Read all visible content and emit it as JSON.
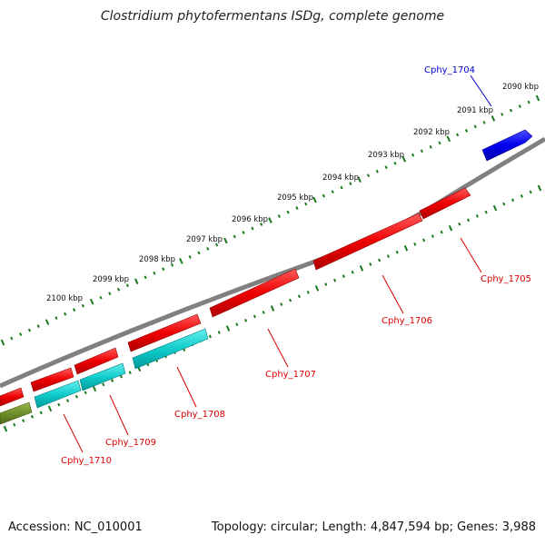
{
  "title": "Clostridium phytofermentans ISDg, complete genome",
  "footer": {
    "accession": "Accession: NC_010001",
    "summary": "Topology: circular; Length: 4,847,594 bp; Genes: 3,988"
  },
  "scale": {
    "labels": [
      "2090 kbp",
      "2091 kbp",
      "2092 kbp",
      "2093 kbp",
      "2094 kbp",
      "2095 kbp",
      "2096 kbp",
      "2097 kbp",
      "2098 kbp",
      "2099 kbp",
      "2100 kbp"
    ]
  },
  "genes": [
    {
      "label": "Cphy_1704",
      "color": "#0000dd"
    },
    {
      "label": "Cphy_1705",
      "color": "#dd0000"
    },
    {
      "label": "Cphy_1706",
      "color": "#dd0000"
    },
    {
      "label": "Cphy_1707",
      "color": "#dd0000"
    },
    {
      "label": "Cphy_1708",
      "color": "#dd0000"
    },
    {
      "label": "Cphy_1709",
      "color": "#dd0000"
    },
    {
      "label": "Cphy_1710",
      "color": "#dd0000"
    }
  ],
  "colors": {
    "backbone": "#808080",
    "tick": "#1a7a1a",
    "forward_feature": "#ff0000",
    "forward_highlight": "#0000ff",
    "reverse_feature": "#00cccc",
    "other_feature": "#6b8e23"
  }
}
